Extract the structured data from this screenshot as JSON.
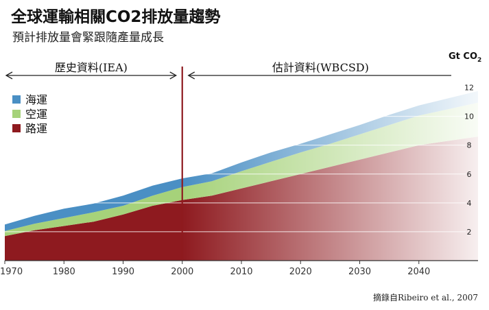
{
  "chart_data": {
    "type": "area",
    "title": "全球運輸相關CO2排放量趨勢",
    "subtitle": "預計排放量會緊跟隨產量成長",
    "unit": "Gt CO2",
    "x_ticks": [
      1970,
      1980,
      1990,
      2000,
      2010,
      2020,
      2030,
      2040
    ],
    "y_ticks": [
      2,
      4,
      6,
      8,
      10,
      12
    ],
    "xlim": [
      1970,
      2050
    ],
    "ylim": [
      0,
      12.5
    ],
    "divider_year": 2000,
    "periods": [
      {
        "label": "歷史資料(IEA)",
        "from": 1970,
        "to": 2000
      },
      {
        "label": "估計資料(WBCSD)",
        "from": 2000,
        "to": 2050
      }
    ],
    "stacked": true,
    "legend_position": "top-left",
    "series": [
      {
        "name": "路運",
        "color": "#8e1a1f",
        "x": [
          1970,
          1975,
          1980,
          1985,
          1990,
          1995,
          2000,
          2005,
          2010,
          2015,
          2020,
          2025,
          2030,
          2035,
          2040,
          2045,
          2050
        ],
        "values": [
          1.7,
          2.1,
          2.4,
          2.7,
          3.2,
          3.8,
          4.2,
          4.5,
          5.0,
          5.5,
          6.0,
          6.5,
          7.0,
          7.5,
          8.0,
          8.3,
          8.6
        ]
      },
      {
        "name": "空運",
        "color": "#a6d27a",
        "x": [
          1970,
          1975,
          1980,
          1985,
          1990,
          1995,
          2000,
          2005,
          2010,
          2015,
          2020,
          2025,
          2030,
          2035,
          2040,
          2045,
          2050
        ],
        "values": [
          0.35,
          0.45,
          0.55,
          0.65,
          0.6,
          0.7,
          0.9,
          1.0,
          1.2,
          1.35,
          1.5,
          1.6,
          1.75,
          1.9,
          2.05,
          2.2,
          2.35
        ]
      },
      {
        "name": "海運",
        "color": "#4a8fc4",
        "x": [
          1970,
          1975,
          1980,
          1985,
          1990,
          1995,
          2000,
          2005,
          2010,
          2015,
          2020,
          2025,
          2030,
          2035,
          2040,
          2045,
          2050
        ],
        "values": [
          0.45,
          0.55,
          0.65,
          0.6,
          0.7,
          0.7,
          0.6,
          0.55,
          0.6,
          0.65,
          0.6,
          0.65,
          0.65,
          0.7,
          0.7,
          0.75,
          0.8
        ]
      }
    ],
    "source": "摘錄自Ribeiro et al., 2007"
  }
}
